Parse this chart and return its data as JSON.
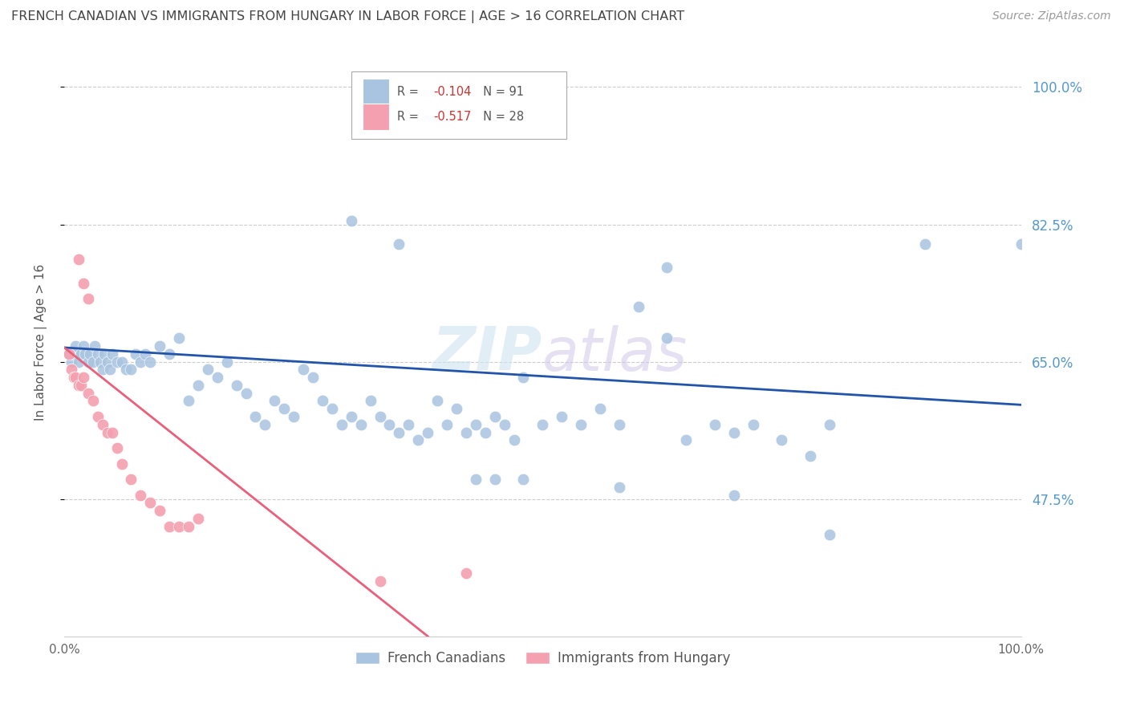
{
  "title": "FRENCH CANADIAN VS IMMIGRANTS FROM HUNGARY IN LABOR FORCE | AGE > 16 CORRELATION CHART",
  "source": "Source: ZipAtlas.com",
  "ylabel": "In Labor Force | Age > 16",
  "xlim": [
    0.0,
    1.0
  ],
  "ylim": [
    0.3,
    1.05
  ],
  "yticks": [
    0.475,
    0.65,
    0.825,
    1.0
  ],
  "ytick_labels": [
    "47.5%",
    "65.0%",
    "82.5%",
    "100.0%"
  ],
  "xticks": [
    0.0,
    0.2,
    0.4,
    0.6,
    0.8,
    1.0
  ],
  "xtick_labels": [
    "0.0%",
    "",
    "",
    "",
    "",
    "100.0%"
  ],
  "blue_R": -0.104,
  "blue_N": 91,
  "pink_R": -0.517,
  "pink_N": 28,
  "legend_label_blue": "French Canadians",
  "legend_label_pink": "Immigrants from Hungary",
  "blue_color": "#A8C4E0",
  "pink_color": "#F4A0B0",
  "blue_line_color": "#2255AA",
  "pink_line_color": "#E8607A",
  "title_color": "#444444",
  "tick_color_right": "#5599CC",
  "grid_color": "#CCCCCC",
  "background_color": "#FFFFFF",
  "blue_x": [
    0.005,
    0.008,
    0.01,
    0.012,
    0.015,
    0.018,
    0.02,
    0.022,
    0.025,
    0.027,
    0.03,
    0.032,
    0.035,
    0.038,
    0.04,
    0.042,
    0.045,
    0.048,
    0.05,
    0.055,
    0.06,
    0.065,
    0.07,
    0.075,
    0.08,
    0.085,
    0.09,
    0.1,
    0.11,
    0.12,
    0.13,
    0.14,
    0.15,
    0.16,
    0.17,
    0.18,
    0.19,
    0.2,
    0.21,
    0.22,
    0.23,
    0.24,
    0.25,
    0.26,
    0.27,
    0.28,
    0.29,
    0.3,
    0.31,
    0.32,
    0.33,
    0.34,
    0.35,
    0.36,
    0.37,
    0.38,
    0.39,
    0.4,
    0.41,
    0.42,
    0.43,
    0.44,
    0.45,
    0.46,
    0.47,
    0.48,
    0.5,
    0.52,
    0.54,
    0.56,
    0.58,
    0.6,
    0.63,
    0.65,
    0.68,
    0.7,
    0.72,
    0.75,
    0.78,
    0.8,
    0.3,
    0.35,
    0.43,
    0.45,
    0.48,
    0.58,
    0.63,
    0.7,
    0.8,
    0.9,
    1.0
  ],
  "blue_y": [
    0.66,
    0.65,
    0.66,
    0.67,
    0.65,
    0.66,
    0.67,
    0.66,
    0.65,
    0.66,
    0.65,
    0.67,
    0.66,
    0.65,
    0.64,
    0.66,
    0.65,
    0.64,
    0.66,
    0.65,
    0.65,
    0.64,
    0.64,
    0.66,
    0.65,
    0.66,
    0.65,
    0.67,
    0.66,
    0.68,
    0.6,
    0.62,
    0.64,
    0.63,
    0.65,
    0.62,
    0.61,
    0.58,
    0.57,
    0.6,
    0.59,
    0.58,
    0.64,
    0.63,
    0.6,
    0.59,
    0.57,
    0.58,
    0.57,
    0.6,
    0.58,
    0.57,
    0.56,
    0.57,
    0.55,
    0.56,
    0.6,
    0.57,
    0.59,
    0.56,
    0.57,
    0.56,
    0.58,
    0.57,
    0.55,
    0.63,
    0.57,
    0.58,
    0.57,
    0.59,
    0.57,
    0.72,
    0.68,
    0.55,
    0.57,
    0.56,
    0.57,
    0.55,
    0.53,
    0.57,
    0.83,
    0.8,
    0.5,
    0.5,
    0.5,
    0.49,
    0.77,
    0.48,
    0.43,
    0.8,
    0.8
  ],
  "pink_x": [
    0.005,
    0.008,
    0.01,
    0.012,
    0.015,
    0.018,
    0.02,
    0.025,
    0.03,
    0.035,
    0.04,
    0.045,
    0.05,
    0.055,
    0.06,
    0.07,
    0.08,
    0.09,
    0.1,
    0.11,
    0.12,
    0.13,
    0.14,
    0.015,
    0.02,
    0.025,
    0.33,
    0.42
  ],
  "pink_y": [
    0.66,
    0.64,
    0.63,
    0.63,
    0.62,
    0.62,
    0.63,
    0.61,
    0.6,
    0.58,
    0.57,
    0.56,
    0.56,
    0.54,
    0.52,
    0.5,
    0.48,
    0.47,
    0.46,
    0.44,
    0.44,
    0.44,
    0.45,
    0.78,
    0.75,
    0.73,
    0.37,
    0.38
  ],
  "blue_line_x": [
    0.0,
    1.0
  ],
  "blue_line_y": [
    0.668,
    0.595
  ],
  "pink_line_x": [
    0.0,
    0.38
  ],
  "pink_line_y": [
    0.668,
    0.3
  ]
}
